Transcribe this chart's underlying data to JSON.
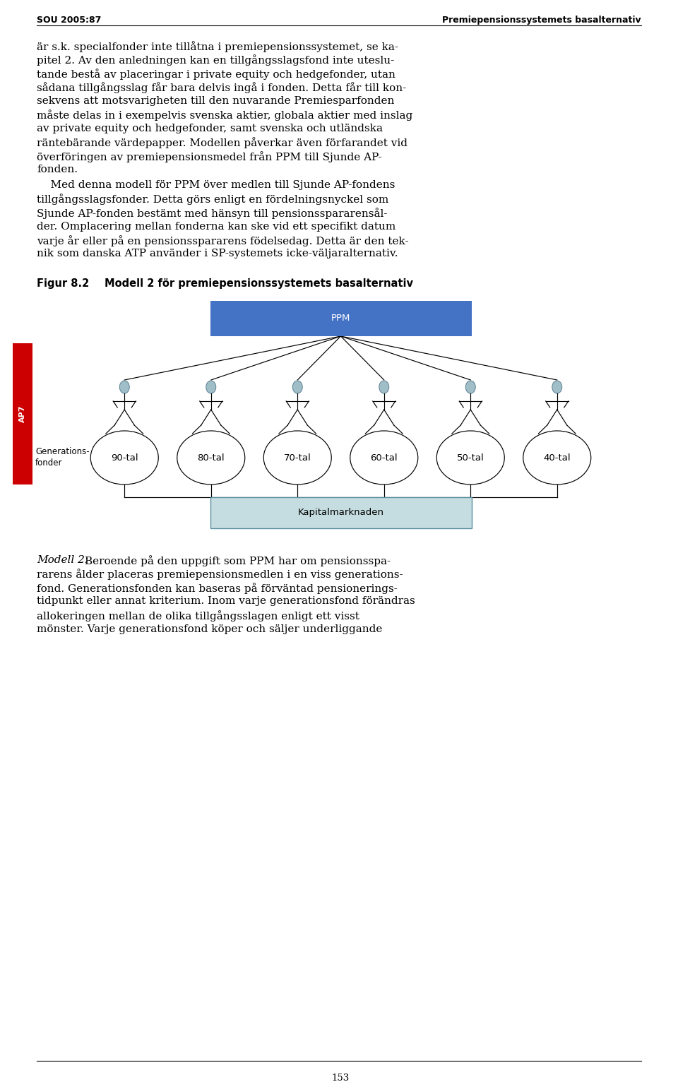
{
  "page_width": 9.6,
  "page_height": 15.32,
  "background_color": "#ffffff",
  "header_left": "SOU 2005:87",
  "header_right": "Premiepensionssystemets basalternativ",
  "footer_text": "153",
  "body_text_1_lines": [
    "är s.k. specialfonder inte tillåtna i premiepensionssystemet, se ka-",
    "pitel 2. Av den anledningen kan en tillgångsslagsfond inte uteslu-",
    "tande bestå av placeringar i private equity och hedgefonder, utan",
    "sådana tillgångsslag får bara delvis ingå i fonden. Detta får till kon-",
    "sekvens att motsvarigheten till den nuvarande Premiesparfonden",
    "måste delas in i exempelvis svenska aktier, globala aktier med inslag",
    "av private equity och hedgefonder, samt svenska och utländska",
    "räntebärande värdepapper. Modellen påverkar även förfarandet vid",
    "överföringen av premiepensionsmedel från PPM till Sjunde AP-",
    "fonden."
  ],
  "body_text_2_lines": [
    "    Med denna modell för PPM över medlen till Sjunde AP-fondens",
    "tillgångsslagsfonder. Detta görs enligt en fördelningsnyckel som",
    "Sjunde AP-fonden bestämt med hänsyn till pensionsspararensål-",
    "der. Omplacering mellan fonderna kan ske vid ett specifikt datum",
    "varje år eller på en pensionsspararens födelsedag. Detta är den tek-",
    "nik som danska ATP använder i SP-systemets icke-väljaralternativ."
  ],
  "figure_label": "Figur 8.2",
  "figure_title": "Modell 2 för premiepensionssystemets basalternativ",
  "ppm_label": "PPM",
  "ppm_box_color": "#4472c4",
  "ppm_box_text_color": "#ffffff",
  "kapital_label": "Kapitalmarknaden",
  "kapital_box_color": "#c5dde0",
  "kapital_box_border_color": "#5a8fa0",
  "generation_labels": [
    "90-tal",
    "80-tal",
    "70-tal",
    "60-tal",
    "50-tal",
    "40-tal"
  ],
  "ap7_label": "AP7",
  "ap7_box_color": "#cc0000",
  "generations_label_line1": "Generations-",
  "generations_label_line2": "fonder",
  "body_text_3_lines": [
    "Modell 2: Beroende på den uppgift som PPM har om pensionsspa-",
    "rarens ålder placeras premiepensionsmedlen i en viss generations-",
    "fond. Generationsfonden kan baseras på förväntad pensionerings-",
    "tidpunkt eller annat kriterium. Inom varje generationsfond förändras",
    "allokeringen mellan de olika tillgångsslagen enligt ett visst",
    "mönster. Varje generationsfond köper och säljer underliggande"
  ],
  "person_head_color": "#a0bec8",
  "ellipse_color": "#ffffff",
  "ellipse_border_color": "#000000",
  "line_color": "#000000",
  "text_color": "#000000",
  "header_font_size": 9,
  "body_font_size": 11,
  "body_leading": 19.5,
  "figure_label_font_size": 10.5,
  "diagram_label_font_size": 9.5,
  "gen_label_font_size": 9.5
}
